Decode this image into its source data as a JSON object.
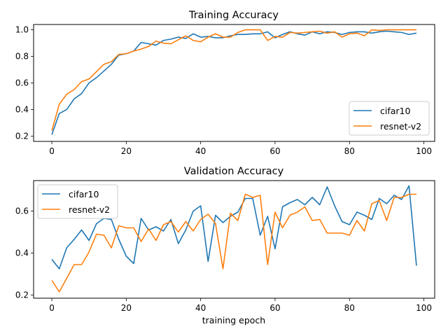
{
  "chart_data": [
    {
      "type": "line",
      "title": "Training Accuracy",
      "xlabel": "",
      "ylabel": "",
      "xlim": [
        -4.9,
        102.9
      ],
      "ylim": [
        0.16,
        1.04
      ],
      "xticks": [
        0,
        20,
        40,
        60,
        80,
        100
      ],
      "yticks": [
        0.2,
        0.4,
        0.6,
        0.8,
        1.0
      ],
      "xtick_labels": [
        "0",
        "20",
        "40",
        "60",
        "80",
        "100"
      ],
      "ytick_labels": [
        "0.2",
        "0.4",
        "0.6",
        "0.8",
        "1.0"
      ],
      "legend_position": "lower-right",
      "grid": false,
      "x": [
        0,
        2,
        4,
        6,
        8,
        10,
        12,
        14,
        16,
        18,
        20,
        22,
        24,
        26,
        28,
        30,
        32,
        34,
        36,
        38,
        40,
        42,
        44,
        46,
        48,
        50,
        52,
        54,
        56,
        58,
        60,
        62,
        64,
        66,
        68,
        70,
        72,
        74,
        76,
        78,
        80,
        82,
        84,
        86,
        88,
        90,
        92,
        94,
        96,
        98
      ],
      "series": [
        {
          "name": "cifar10",
          "color": "#1f77b4",
          "values": [
            0.21,
            0.37,
            0.4,
            0.48,
            0.52,
            0.6,
            0.64,
            0.69,
            0.74,
            0.81,
            0.82,
            0.84,
            0.905,
            0.895,
            0.885,
            0.92,
            0.93,
            0.945,
            0.935,
            0.97,
            0.945,
            0.95,
            0.94,
            0.94,
            0.955,
            0.965,
            0.965,
            0.97,
            0.97,
            0.985,
            0.94,
            0.965,
            0.985,
            0.97,
            0.96,
            0.985,
            0.97,
            0.985,
            0.98,
            0.965,
            0.98,
            0.985,
            0.985,
            0.975,
            0.985,
            0.99,
            0.985,
            0.98,
            0.965,
            0.975
          ]
        },
        {
          "name": "resnet-v2",
          "color": "#ff7f0e",
          "values": [
            0.24,
            0.44,
            0.515,
            0.55,
            0.61,
            0.63,
            0.685,
            0.74,
            0.76,
            0.815,
            0.82,
            0.84,
            0.855,
            0.875,
            0.915,
            0.9,
            0.895,
            0.925,
            0.955,
            0.92,
            0.91,
            0.945,
            0.97,
            0.945,
            0.945,
            0.98,
            1.0,
            1.0,
            1.0,
            0.92,
            0.95,
            0.945,
            0.98,
            0.975,
            0.98,
            0.985,
            0.99,
            0.975,
            0.985,
            0.945,
            0.97,
            0.975,
            0.955,
            1.0,
            0.995,
            1.0,
            1.0,
            1.0,
            1.0,
            1.0
          ]
        }
      ]
    },
    {
      "type": "line",
      "title": "Validation Accuracy",
      "xlabel": "training epoch",
      "ylabel": "",
      "xlim": [
        -4.9,
        102.9
      ],
      "ylim": [
        0.185,
        0.745
      ],
      "xticks": [
        0,
        20,
        40,
        60,
        80,
        100
      ],
      "yticks": [
        0.2,
        0.4,
        0.6
      ],
      "xtick_labels": [
        "0",
        "20",
        "40",
        "60",
        "80",
        "100"
      ],
      "ytick_labels": [
        "0.2",
        "0.4",
        "0.6"
      ],
      "legend_position": "upper-left",
      "grid": false,
      "x": [
        0,
        2,
        4,
        6,
        8,
        10,
        12,
        14,
        16,
        18,
        20,
        22,
        24,
        26,
        28,
        30,
        32,
        34,
        36,
        38,
        40,
        42,
        44,
        46,
        48,
        50,
        52,
        54,
        56,
        58,
        60,
        62,
        64,
        66,
        68,
        70,
        72,
        74,
        76,
        78,
        80,
        82,
        84,
        86,
        88,
        90,
        92,
        94,
        96,
        98
      ],
      "series": [
        {
          "name": "cifar10",
          "color": "#1f77b4",
          "values": [
            0.37,
            0.325,
            0.425,
            0.465,
            0.51,
            0.46,
            0.54,
            0.565,
            0.56,
            0.465,
            0.385,
            0.35,
            0.565,
            0.51,
            0.525,
            0.505,
            0.56,
            0.445,
            0.51,
            0.6,
            0.625,
            0.36,
            0.58,
            0.545,
            0.575,
            0.595,
            0.66,
            0.66,
            0.485,
            0.575,
            0.42,
            0.62,
            0.64,
            0.655,
            0.63,
            0.665,
            0.63,
            0.715,
            0.625,
            0.55,
            0.535,
            0.595,
            0.58,
            0.56,
            0.66,
            0.635,
            0.675,
            0.655,
            0.72,
            0.34
          ]
        },
        {
          "name": "resnet-v2",
          "color": "#ff7f0e",
          "values": [
            0.27,
            0.215,
            0.28,
            0.345,
            0.345,
            0.405,
            0.49,
            0.485,
            0.425,
            0.53,
            0.52,
            0.52,
            0.455,
            0.515,
            0.46,
            0.535,
            0.55,
            0.5,
            0.55,
            0.505,
            0.56,
            0.585,
            0.54,
            0.325,
            0.59,
            0.555,
            0.68,
            0.665,
            0.675,
            0.345,
            0.595,
            0.52,
            0.58,
            0.595,
            0.62,
            0.555,
            0.56,
            0.495,
            0.495,
            0.495,
            0.485,
            0.555,
            0.505,
            0.635,
            0.65,
            0.555,
            0.665,
            0.665,
            0.68,
            0.68
          ]
        }
      ]
    }
  ]
}
